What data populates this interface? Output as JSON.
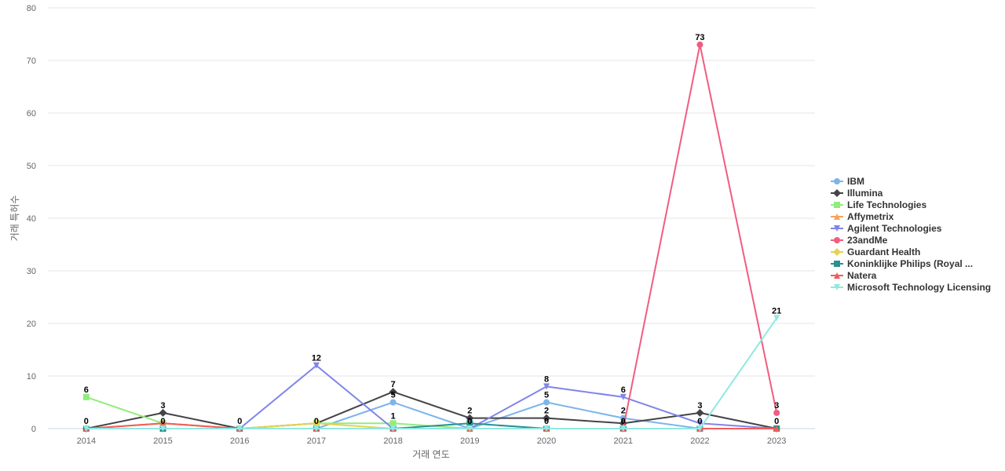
{
  "chart_data": {
    "type": "line",
    "title": "",
    "xlabel": "거래 연도",
    "ylabel": "거래 특허수",
    "ylim": [
      0,
      80
    ],
    "yticks": [
      0,
      10,
      20,
      30,
      40,
      50,
      60,
      70,
      80
    ],
    "grid": true,
    "legend_position": "right",
    "x": [
      "2014",
      "2015",
      "2016",
      "2017",
      "2018",
      "2019",
      "2020",
      "2021",
      "2022",
      "2023"
    ],
    "series": [
      {
        "name": "IBM",
        "color": "#7cb5ec",
        "marker": "circle",
        "values": [
          0,
          0,
          0,
          0,
          5,
          0,
          5,
          2,
          0,
          0
        ]
      },
      {
        "name": "Illumina",
        "color": "#434348",
        "marker": "diamond",
        "values": [
          0,
          3,
          0,
          1,
          7,
          2,
          2,
          1,
          3,
          0
        ]
      },
      {
        "name": "Life Technologies",
        "color": "#90ed7d",
        "marker": "square",
        "values": [
          6,
          1,
          0,
          1,
          1,
          0,
          0,
          0,
          0,
          0
        ]
      },
      {
        "name": "Affymetrix",
        "color": "#f7a35c",
        "marker": "triangle",
        "values": [
          0,
          1,
          0,
          0,
          0,
          0,
          0,
          0,
          0,
          0
        ]
      },
      {
        "name": "Agilent Technologies",
        "color": "#8085e9",
        "marker": "triangle-down",
        "values": [
          0,
          0,
          0,
          12,
          0,
          0,
          8,
          6,
          1,
          0
        ]
      },
      {
        "name": "23andMe",
        "color": "#f15c80",
        "marker": "circle",
        "values": [
          0,
          0,
          0,
          0,
          0,
          0,
          0,
          0,
          73,
          3
        ]
      },
      {
        "name": "Guardant Health",
        "color": "#e4d354",
        "marker": "diamond",
        "values": [
          0,
          0,
          0,
          1,
          0,
          0,
          0,
          0,
          0,
          0
        ]
      },
      {
        "name": "Koninklijke Philips (Royal ...",
        "color": "#2b908f",
        "marker": "square",
        "values": [
          0,
          0,
          0,
          0,
          0,
          1,
          0,
          0,
          0,
          0
        ]
      },
      {
        "name": "Natera",
        "color": "#f45b5b",
        "marker": "triangle",
        "values": [
          0,
          1,
          0,
          0,
          0,
          0,
          0,
          0,
          0,
          0
        ]
      },
      {
        "name": "Microsoft Technology Licensing",
        "color": "#91e8e1",
        "marker": "triangle-down",
        "values": [
          0,
          0,
          0,
          0,
          0,
          0,
          0,
          0,
          0,
          21
        ]
      }
    ],
    "data_labels": [
      {
        "series": "Life Technologies",
        "x": "2014",
        "text": "6"
      },
      {
        "series": "IBM",
        "x": "2014",
        "text": "0"
      },
      {
        "series": "Illumina",
        "x": "2015",
        "text": "3"
      },
      {
        "series": "IBM",
        "x": "2015",
        "text": "0"
      },
      {
        "series": "IBM",
        "x": "2016",
        "text": "0"
      },
      {
        "series": "Agilent Technologies",
        "x": "2017",
        "text": "12"
      },
      {
        "series": "IBM",
        "x": "2017",
        "text": "0"
      },
      {
        "series": "Illumina",
        "x": "2018",
        "text": "7"
      },
      {
        "series": "IBM",
        "x": "2018",
        "text": "5"
      },
      {
        "series": "Life Technologies",
        "x": "2018",
        "text": "1"
      },
      {
        "series": "Illumina",
        "x": "2019",
        "text": "2"
      },
      {
        "series": "IBM",
        "x": "2019",
        "text": "0"
      },
      {
        "series": "Agilent Technologies",
        "x": "2020",
        "text": "8"
      },
      {
        "series": "IBM",
        "x": "2020",
        "text": "5"
      },
      {
        "series": "Illumina",
        "x": "2020",
        "text": "2"
      },
      {
        "series": "Life Technologies",
        "x": "2020",
        "text": "0"
      },
      {
        "series": "Agilent Technologies",
        "x": "2021",
        "text": "6"
      },
      {
        "series": "IBM",
        "x": "2021",
        "text": "2"
      },
      {
        "series": "Life Technologies",
        "x": "2021",
        "text": "0"
      },
      {
        "series": "23andMe",
        "x": "2022",
        "text": "73"
      },
      {
        "series": "Illumina",
        "x": "2022",
        "text": "3"
      },
      {
        "series": "IBM",
        "x": "2022",
        "text": "0"
      },
      {
        "series": "Microsoft Technology Licensing",
        "x": "2023",
        "text": "21"
      },
      {
        "series": "23andMe",
        "x": "2023",
        "text": "3"
      },
      {
        "series": "IBM",
        "x": "2023",
        "text": "0"
      }
    ]
  }
}
